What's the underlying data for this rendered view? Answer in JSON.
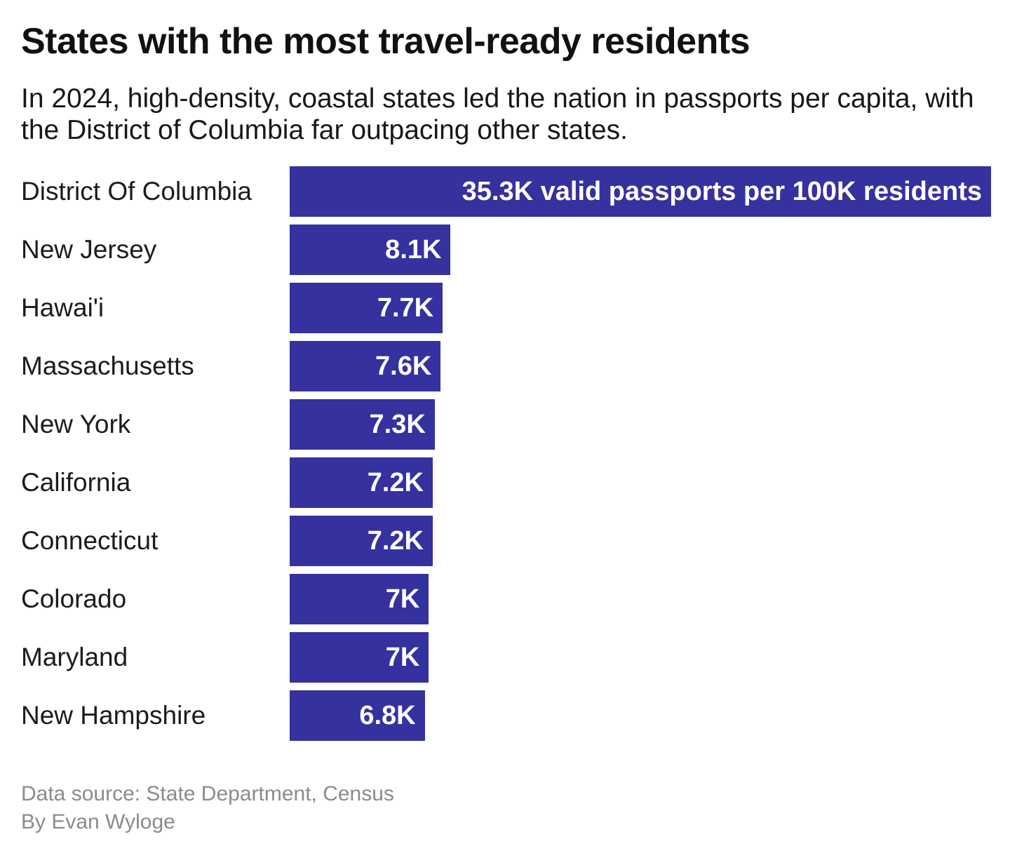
{
  "chart_data": {
    "type": "bar",
    "orientation": "horizontal",
    "title": "States with the most travel-ready residents",
    "subtitle": "In 2024, high-density, coastal states led the nation in passports per capita, with the District of Columbia far outpacing other states.",
    "categories": [
      "District Of Columbia",
      "New Jersey",
      "Hawai'i",
      "Massachusetts",
      "New York",
      "California",
      "Connecticut",
      "Colorado",
      "Maryland",
      "New Hampshire"
    ],
    "values": [
      35300,
      8100,
      7700,
      7600,
      7300,
      7200,
      7200,
      7000,
      7000,
      6800
    ],
    "value_labels": [
      "35.3K valid passports per 100K residents",
      "8.1K",
      "7.7K",
      "7.6K",
      "7.3K",
      "7.2K",
      "7.2K",
      "7K",
      "7K",
      "6.8K"
    ],
    "unit": "valid passports per 100K residents",
    "xlim": [
      0,
      35300
    ],
    "grid": false,
    "legend": false,
    "axis_ticks": "none",
    "bar_color": "#35319e",
    "bar_label_color": "#ffffff"
  },
  "footer": {
    "source": "Data source: State Department, Census",
    "byline": "By Evan Wyloge"
  }
}
